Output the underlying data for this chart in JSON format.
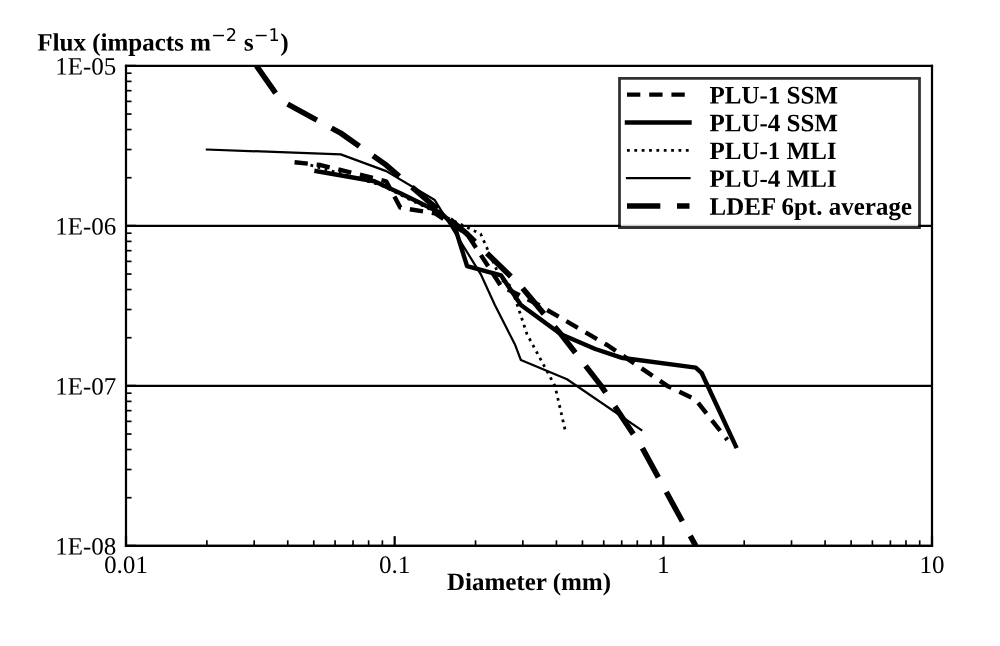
{
  "chart_data": {
    "type": "line",
    "ylabel": "Flux (impacts m$^{−2}$ s$^{−1}$)",
    "xlabel": "Diameter (mm)",
    "log": "xy",
    "grid": "y",
    "legend": "top right",
    "marker": "none",
    "xlim": [
      0.01,
      10
    ],
    "xticks": [
      0.01,
      0.1,
      1,
      10
    ],
    "ylim": [
      1e-08,
      1e-05
    ],
    "yticks": [
      {
        "value": 1e-08,
        "label": "1E-08"
      },
      {
        "value": 1e-07,
        "label": "1E-07"
      },
      {
        "value": 1e-06,
        "label": "1E-06"
      },
      {
        "value": 1e-05,
        "label": "1E-05"
      }
    ],
    "series": [
      {
        "name": "PLU-1 SSM",
        "color": "#000000",
        "line_style": "dashed",
        "x": [
          0.0424,
          0.053,
          0.093,
          0.105,
          0.141,
          0.186,
          0.249,
          0.333,
          0.618,
          1.035,
          1.32,
          1.73
        ],
        "values": [
          2.5e-06,
          2.4e-06,
          1.9e-06,
          1.3e-06,
          1.2e-06,
          8.9e-07,
          4.2e-07,
          3.3e-07,
          1.8e-07,
          1e-07,
          8.2e-08,
          4.6e-08
        ]
      },
      {
        "name": "PLU-4 SSM",
        "color": "#000000",
        "line_style": "solid",
        "x": [
          0.0512,
          0.084,
          0.105,
          0.149,
          0.167,
          0.186,
          0.249,
          0.295,
          0.416,
          0.558,
          0.697,
          1.32,
          1.39,
          1.86
        ],
        "values": [
          2.2e-06,
          1.9e-06,
          1.6e-06,
          1.2e-06,
          1e-06,
          5.6e-07,
          4.9e-07,
          3.2e-07,
          2.1e-07,
          1.7e-07,
          1.5e-07,
          1.3e-07,
          1.2e-07,
          4.2e-08
        ]
      },
      {
        "name": "PLU-1 MLI",
        "color": "#000000",
        "line_style": "dotted",
        "x": [
          0.0486,
          0.0887,
          0.115,
          0.209,
          0.249,
          0.271,
          0.311,
          0.395,
          0.431
        ],
        "values": [
          2.4e-06,
          1.8e-06,
          1.45e-06,
          8.9e-07,
          4.6e-07,
          4.2e-07,
          2.1e-07,
          1e-07,
          5.3e-08
        ]
      },
      {
        "name": "PLU-4 MLI",
        "color": "#000000",
        "line_style": "solid",
        "x": [
          0.02,
          0.063,
          0.093,
          0.141,
          0.209,
          0.236,
          0.281,
          0.295,
          0.438,
          0.828
        ],
        "values": [
          3e-06,
          2.8e-06,
          2.2e-06,
          1.45e-06,
          5e-07,
          3.2e-07,
          1.8e-07,
          1.45e-07,
          1.1e-07,
          5.3e-08
        ]
      },
      {
        "name": "LDEF 6pt. average",
        "color": "#000000",
        "line_style": "dashed",
        "x": [
          0.0306,
          0.0376,
          0.063,
          0.093,
          0.132,
          0.186,
          0.295,
          0.416,
          0.587,
          0.828,
          1.32
        ],
        "values": [
          1e-05,
          6.1e-06,
          3.8e-06,
          2.4e-06,
          1.45e-06,
          8.9e-07,
          4.2e-07,
          2.1e-07,
          1e-07,
          4.2e-08,
          1e-08
        ]
      }
    ]
  }
}
